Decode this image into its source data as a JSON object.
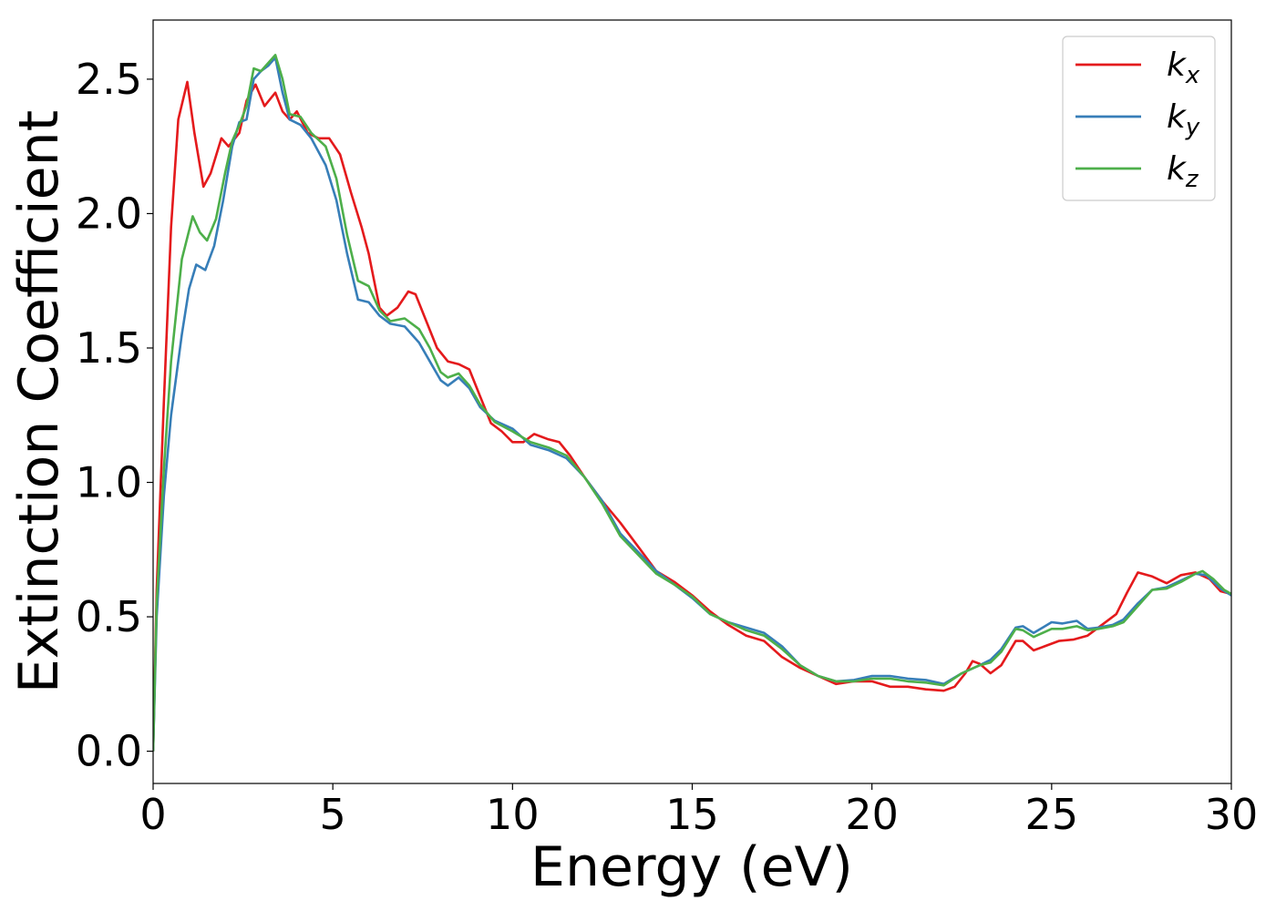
{
  "chart_data": {
    "type": "line",
    "xlabel": "Energy (eV)",
    "ylabel": "Extinction Coefficient",
    "xlim": [
      0,
      30
    ],
    "ylim": [
      -0.12,
      2.72
    ],
    "xticks": [
      0,
      5,
      10,
      15,
      20,
      25,
      30
    ],
    "yticks": [
      0.0,
      0.5,
      1.0,
      1.5,
      2.0,
      2.5
    ],
    "xtick_labels": [
      "0",
      "5",
      "10",
      "15",
      "20",
      "25",
      "30"
    ],
    "ytick_labels": [
      "0.0",
      "0.5",
      "1.0",
      "1.5",
      "2.0",
      "2.5"
    ],
    "grid": false,
    "legend_position": "top-right",
    "series": [
      {
        "name": "k_x",
        "label_main": "k",
        "label_sub": "x",
        "color": "#e41a1c",
        "points": [
          [
            0,
            0.0
          ],
          [
            0.1,
            0.6
          ],
          [
            0.3,
            1.3
          ],
          [
            0.5,
            1.95
          ],
          [
            0.7,
            2.35
          ],
          [
            0.95,
            2.49
          ],
          [
            1.15,
            2.3
          ],
          [
            1.4,
            2.1
          ],
          [
            1.6,
            2.15
          ],
          [
            1.9,
            2.28
          ],
          [
            2.1,
            2.25
          ],
          [
            2.4,
            2.3
          ],
          [
            2.6,
            2.42
          ],
          [
            2.85,
            2.48
          ],
          [
            3.1,
            2.4
          ],
          [
            3.4,
            2.45
          ],
          [
            3.6,
            2.38
          ],
          [
            3.8,
            2.35
          ],
          [
            4.0,
            2.38
          ],
          [
            4.3,
            2.3
          ],
          [
            4.6,
            2.28
          ],
          [
            4.9,
            2.28
          ],
          [
            5.2,
            2.22
          ],
          [
            5.5,
            2.08
          ],
          [
            5.8,
            1.95
          ],
          [
            6.0,
            1.85
          ],
          [
            6.3,
            1.65
          ],
          [
            6.5,
            1.62
          ],
          [
            6.8,
            1.65
          ],
          [
            7.1,
            1.71
          ],
          [
            7.3,
            1.7
          ],
          [
            7.6,
            1.6
          ],
          [
            7.9,
            1.5
          ],
          [
            8.2,
            1.45
          ],
          [
            8.5,
            1.44
          ],
          [
            8.8,
            1.42
          ],
          [
            9.1,
            1.32
          ],
          [
            9.4,
            1.22
          ],
          [
            9.7,
            1.19
          ],
          [
            10.0,
            1.15
          ],
          [
            10.3,
            1.15
          ],
          [
            10.6,
            1.18
          ],
          [
            11.0,
            1.16
          ],
          [
            11.3,
            1.15
          ],
          [
            11.6,
            1.1
          ],
          [
            12.0,
            1.02
          ],
          [
            12.5,
            0.93
          ],
          [
            13.0,
            0.85
          ],
          [
            13.5,
            0.76
          ],
          [
            14.0,
            0.67
          ],
          [
            14.5,
            0.63
          ],
          [
            15.0,
            0.58
          ],
          [
            15.5,
            0.52
          ],
          [
            16.0,
            0.47
          ],
          [
            16.5,
            0.43
          ],
          [
            17.0,
            0.41
          ],
          [
            17.5,
            0.35
          ],
          [
            18.0,
            0.31
          ],
          [
            18.5,
            0.28
          ],
          [
            19.0,
            0.25
          ],
          [
            19.5,
            0.26
          ],
          [
            20.0,
            0.26
          ],
          [
            20.5,
            0.24
          ],
          [
            21.0,
            0.24
          ],
          [
            21.5,
            0.23
          ],
          [
            22.0,
            0.225
          ],
          [
            22.3,
            0.24
          ],
          [
            22.6,
            0.29
          ],
          [
            22.8,
            0.335
          ],
          [
            23.0,
            0.325
          ],
          [
            23.3,
            0.29
          ],
          [
            23.6,
            0.32
          ],
          [
            24.0,
            0.41
          ],
          [
            24.2,
            0.41
          ],
          [
            24.5,
            0.375
          ],
          [
            24.8,
            0.39
          ],
          [
            25.2,
            0.41
          ],
          [
            25.6,
            0.415
          ],
          [
            26.0,
            0.43
          ],
          [
            26.4,
            0.47
          ],
          [
            26.8,
            0.51
          ],
          [
            27.1,
            0.59
          ],
          [
            27.4,
            0.665
          ],
          [
            27.8,
            0.65
          ],
          [
            28.2,
            0.625
          ],
          [
            28.6,
            0.655
          ],
          [
            29.0,
            0.665
          ],
          [
            29.4,
            0.64
          ],
          [
            29.7,
            0.595
          ],
          [
            30.0,
            0.585
          ]
        ]
      },
      {
        "name": "k_y",
        "label_main": "k",
        "label_sub": "y",
        "color": "#377eb8",
        "points": [
          [
            0,
            0.0
          ],
          [
            0.1,
            0.5
          ],
          [
            0.3,
            0.95
          ],
          [
            0.5,
            1.25
          ],
          [
            0.8,
            1.55
          ],
          [
            1.0,
            1.72
          ],
          [
            1.2,
            1.81
          ],
          [
            1.45,
            1.79
          ],
          [
            1.7,
            1.88
          ],
          [
            1.95,
            2.05
          ],
          [
            2.2,
            2.25
          ],
          [
            2.4,
            2.34
          ],
          [
            2.6,
            2.35
          ],
          [
            2.8,
            2.5
          ],
          [
            3.0,
            2.53
          ],
          [
            3.2,
            2.55
          ],
          [
            3.4,
            2.58
          ],
          [
            3.6,
            2.45
          ],
          [
            3.8,
            2.35
          ],
          [
            4.1,
            2.33
          ],
          [
            4.4,
            2.28
          ],
          [
            4.8,
            2.18
          ],
          [
            5.1,
            2.05
          ],
          [
            5.4,
            1.85
          ],
          [
            5.7,
            1.68
          ],
          [
            6.0,
            1.67
          ],
          [
            6.3,
            1.62
          ],
          [
            6.6,
            1.59
          ],
          [
            7.0,
            1.58
          ],
          [
            7.4,
            1.52
          ],
          [
            7.7,
            1.45
          ],
          [
            8.0,
            1.38
          ],
          [
            8.2,
            1.36
          ],
          [
            8.5,
            1.39
          ],
          [
            8.8,
            1.35
          ],
          [
            9.1,
            1.28
          ],
          [
            9.5,
            1.23
          ],
          [
            10.0,
            1.2
          ],
          [
            10.5,
            1.14
          ],
          [
            11.0,
            1.12
          ],
          [
            11.5,
            1.09
          ],
          [
            12.0,
            1.02
          ],
          [
            12.5,
            0.93
          ],
          [
            13.0,
            0.81
          ],
          [
            13.5,
            0.74
          ],
          [
            14.0,
            0.67
          ],
          [
            14.5,
            0.62
          ],
          [
            15.0,
            0.57
          ],
          [
            15.5,
            0.51
          ],
          [
            16.0,
            0.48
          ],
          [
            16.5,
            0.46
          ],
          [
            17.0,
            0.44
          ],
          [
            17.5,
            0.39
          ],
          [
            18.0,
            0.32
          ],
          [
            18.5,
            0.28
          ],
          [
            19.0,
            0.26
          ],
          [
            19.5,
            0.265
          ],
          [
            20.0,
            0.28
          ],
          [
            20.5,
            0.28
          ],
          [
            21.0,
            0.27
          ],
          [
            21.5,
            0.265
          ],
          [
            22.0,
            0.25
          ],
          [
            22.5,
            0.29
          ],
          [
            23.0,
            0.32
          ],
          [
            23.3,
            0.34
          ],
          [
            23.6,
            0.38
          ],
          [
            24.0,
            0.46
          ],
          [
            24.2,
            0.465
          ],
          [
            24.5,
            0.44
          ],
          [
            25.0,
            0.48
          ],
          [
            25.3,
            0.475
          ],
          [
            25.7,
            0.485
          ],
          [
            26.0,
            0.455
          ],
          [
            26.3,
            0.46
          ],
          [
            26.7,
            0.47
          ],
          [
            27.0,
            0.49
          ],
          [
            27.4,
            0.55
          ],
          [
            27.8,
            0.6
          ],
          [
            28.2,
            0.61
          ],
          [
            28.6,
            0.635
          ],
          [
            29.0,
            0.66
          ],
          [
            29.3,
            0.655
          ],
          [
            29.7,
            0.605
          ],
          [
            30.0,
            0.58
          ]
        ]
      },
      {
        "name": "k_z",
        "label_main": "k",
        "label_sub": "z",
        "color": "#4daf4a",
        "points": [
          [
            0,
            0.0
          ],
          [
            0.1,
            0.55
          ],
          [
            0.3,
            1.05
          ],
          [
            0.5,
            1.45
          ],
          [
            0.8,
            1.83
          ],
          [
            1.1,
            1.99
          ],
          [
            1.3,
            1.93
          ],
          [
            1.5,
            1.9
          ],
          [
            1.75,
            1.98
          ],
          [
            2.0,
            2.15
          ],
          [
            2.2,
            2.27
          ],
          [
            2.4,
            2.33
          ],
          [
            2.6,
            2.4
          ],
          [
            2.8,
            2.54
          ],
          [
            3.0,
            2.53
          ],
          [
            3.2,
            2.56
          ],
          [
            3.4,
            2.59
          ],
          [
            3.6,
            2.5
          ],
          [
            3.8,
            2.37
          ],
          [
            4.1,
            2.36
          ],
          [
            4.4,
            2.3
          ],
          [
            4.8,
            2.25
          ],
          [
            5.1,
            2.13
          ],
          [
            5.4,
            1.92
          ],
          [
            5.7,
            1.75
          ],
          [
            6.0,
            1.73
          ],
          [
            6.3,
            1.64
          ],
          [
            6.6,
            1.6
          ],
          [
            7.0,
            1.61
          ],
          [
            7.4,
            1.57
          ],
          [
            7.7,
            1.5
          ],
          [
            8.0,
            1.41
          ],
          [
            8.2,
            1.39
          ],
          [
            8.5,
            1.405
          ],
          [
            8.8,
            1.36
          ],
          [
            9.1,
            1.29
          ],
          [
            9.5,
            1.225
          ],
          [
            10.0,
            1.19
          ],
          [
            10.5,
            1.15
          ],
          [
            11.0,
            1.13
          ],
          [
            11.5,
            1.1
          ],
          [
            12.0,
            1.02
          ],
          [
            12.5,
            0.92
          ],
          [
            13.0,
            0.8
          ],
          [
            13.5,
            0.73
          ],
          [
            14.0,
            0.66
          ],
          [
            14.5,
            0.62
          ],
          [
            15.0,
            0.575
          ],
          [
            15.5,
            0.51
          ],
          [
            16.0,
            0.48
          ],
          [
            16.5,
            0.45
          ],
          [
            17.0,
            0.43
          ],
          [
            17.5,
            0.38
          ],
          [
            18.0,
            0.32
          ],
          [
            18.5,
            0.28
          ],
          [
            19.0,
            0.26
          ],
          [
            19.5,
            0.26
          ],
          [
            20.0,
            0.27
          ],
          [
            20.5,
            0.27
          ],
          [
            21.0,
            0.26
          ],
          [
            21.5,
            0.255
          ],
          [
            22.0,
            0.245
          ],
          [
            22.5,
            0.29
          ],
          [
            23.0,
            0.32
          ],
          [
            23.3,
            0.33
          ],
          [
            23.6,
            0.37
          ],
          [
            24.0,
            0.455
          ],
          [
            24.2,
            0.45
          ],
          [
            24.5,
            0.425
          ],
          [
            25.0,
            0.455
          ],
          [
            25.3,
            0.455
          ],
          [
            25.7,
            0.465
          ],
          [
            26.0,
            0.45
          ],
          [
            26.3,
            0.455
          ],
          [
            26.7,
            0.465
          ],
          [
            27.0,
            0.48
          ],
          [
            27.4,
            0.54
          ],
          [
            27.8,
            0.6
          ],
          [
            28.2,
            0.605
          ],
          [
            28.6,
            0.63
          ],
          [
            29.0,
            0.66
          ],
          [
            29.2,
            0.67
          ],
          [
            29.5,
            0.64
          ],
          [
            29.8,
            0.6
          ],
          [
            30.0,
            0.585
          ]
        ]
      }
    ]
  }
}
